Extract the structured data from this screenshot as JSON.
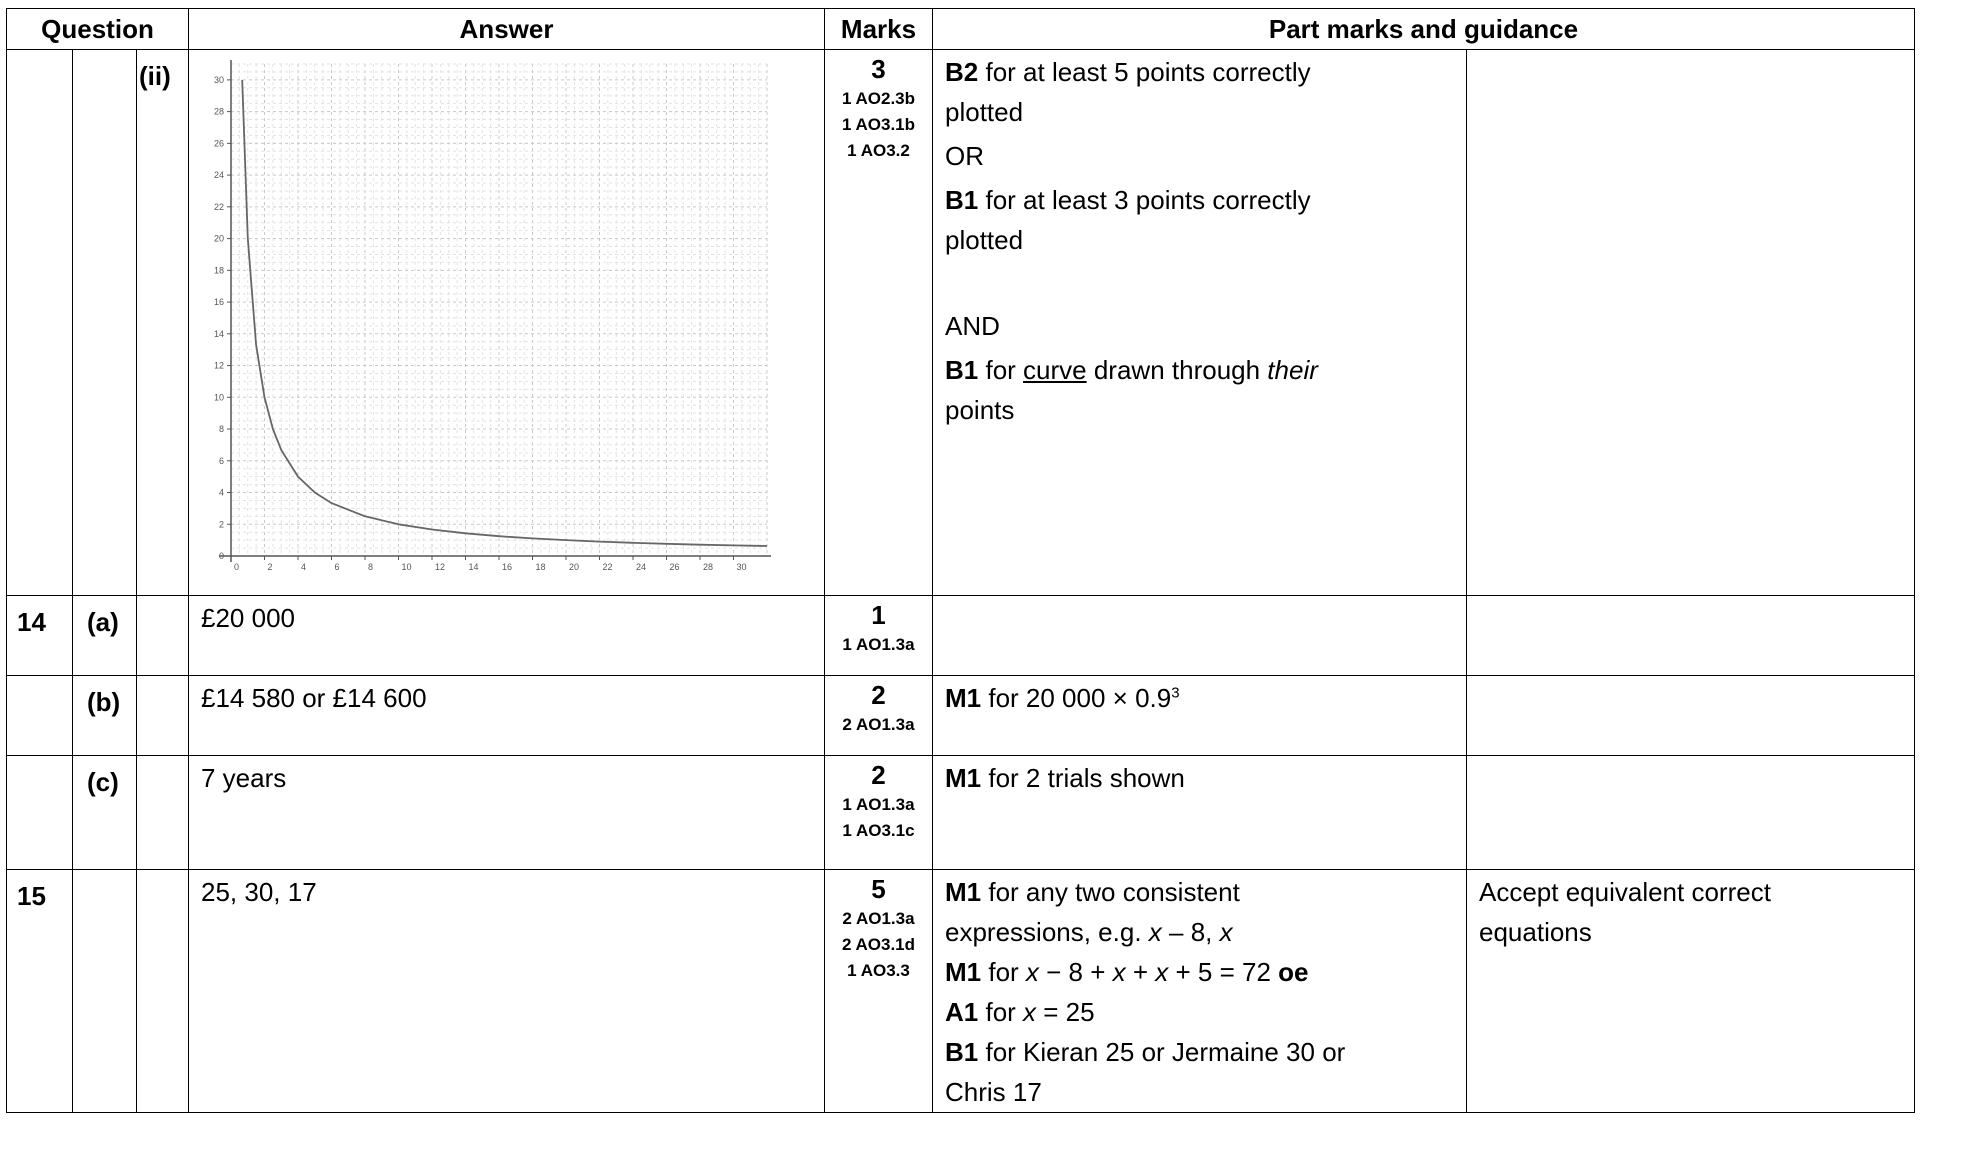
{
  "headers": {
    "question": "Question",
    "answer": "Answer",
    "marks": "Marks",
    "guidance": "Part marks and guidance"
  },
  "rows": [
    {
      "q": "",
      "part": "",
      "sub": "(ii)",
      "answer": "",
      "marks": "3",
      "ao": [
        "1 AO2.3b",
        "1 AO3.1b",
        "1 AO3.2"
      ],
      "pm": {
        "l1_b": "B2",
        "l1_t": " for at least 5 points correctly",
        "l2": "plotted",
        "l3": "OR",
        "l4_b": "B1",
        "l4_t": " for at least 3 points correctly",
        "l5": "plotted",
        "l6": "AND",
        "l7_b": "B1",
        "l7_t1": " for ",
        "l7_u": "curve",
        "l7_t2": " drawn through ",
        "l7_i": "their",
        "l8": "points"
      },
      "guidance": ""
    },
    {
      "q": "14",
      "part": "(a)",
      "sub": "",
      "answer": "£20 000",
      "marks": "1",
      "ao": [
        "1 AO1.3a"
      ],
      "guidance": ""
    },
    {
      "q": "",
      "part": "(b)",
      "sub": "",
      "answer": "£14 580 or £14 600",
      "marks": "2",
      "ao": [
        "2 AO1.3a"
      ],
      "pm": {
        "b": "M1",
        "t": " for 20 000 × 0.9",
        "sup": "3"
      },
      "guidance": ""
    },
    {
      "q": "",
      "part": "(c)",
      "sub": "",
      "answer": "7 years",
      "marks": "2",
      "ao": [
        "1 AO1.3a",
        "1 AO3.1c"
      ],
      "pm": {
        "b": "M1",
        "t": " for 2 trials shown"
      },
      "guidance": ""
    },
    {
      "q": "15",
      "part": "",
      "sub": "",
      "answer": "25, 30, 17",
      "marks": "5",
      "ao": [
        "2 AO1.3a",
        "2 AO3.1d",
        "1 AO3.3"
      ],
      "pm": {
        "l1_b": "M1",
        "l1_t": " for any two consistent",
        "l2_t": "expressions, e.g. ",
        "l2_i1": "x",
        "l2_t2": " – 8, ",
        "l2_i2": "x",
        "l3_b": "M1",
        "l3_t1": " for ",
        "l3_i1": "x",
        "l3_t2": " − 8 + ",
        "l3_i2": "x",
        "l3_t3": " + ",
        "l3_i3": "x",
        "l3_t4": " + 5 = 72 ",
        "l3_b2": "oe",
        "l4_b": "A1",
        "l4_t": " for ",
        "l4_i": "x",
        "l4_t2": " = 25",
        "l5_b": "B1",
        "l5_t": " for Kieran 25 or Jermaine 30 or",
        "l6": "Chris 17"
      },
      "guidance": "Accept equivalent correct equations",
      "guidance_l1": "Accept equivalent correct",
      "guidance_l2": "equations"
    }
  ],
  "chart_data": {
    "type": "line",
    "function": "y = 20 / x",
    "x": [
      0.67,
      1,
      1.5,
      2,
      2.5,
      3,
      4,
      5,
      6,
      8,
      10,
      12,
      14,
      16,
      18,
      20,
      22,
      24,
      26,
      28,
      30,
      32
    ],
    "y": [
      30,
      20,
      13.3,
      10,
      8,
      6.67,
      5,
      4,
      3.33,
      2.5,
      2,
      1.67,
      1.43,
      1.25,
      1.11,
      1,
      0.91,
      0.83,
      0.77,
      0.71,
      0.67,
      0.63
    ],
    "xlim": [
      0,
      32
    ],
    "ylim": [
      0,
      31
    ],
    "x_ticks": [
      "0",
      "2",
      "4",
      "6",
      "8",
      "10",
      "12",
      "14",
      "16",
      "18",
      "20",
      "22",
      "24",
      "26",
      "28",
      "30"
    ],
    "y_ticks": [
      "0",
      "2",
      "4",
      "6",
      "8",
      "10",
      "12",
      "14",
      "16",
      "18",
      "20",
      "22",
      "24",
      "26",
      "28",
      "30"
    ],
    "grid": true,
    "title": "",
    "xlabel": "",
    "ylabel": ""
  }
}
